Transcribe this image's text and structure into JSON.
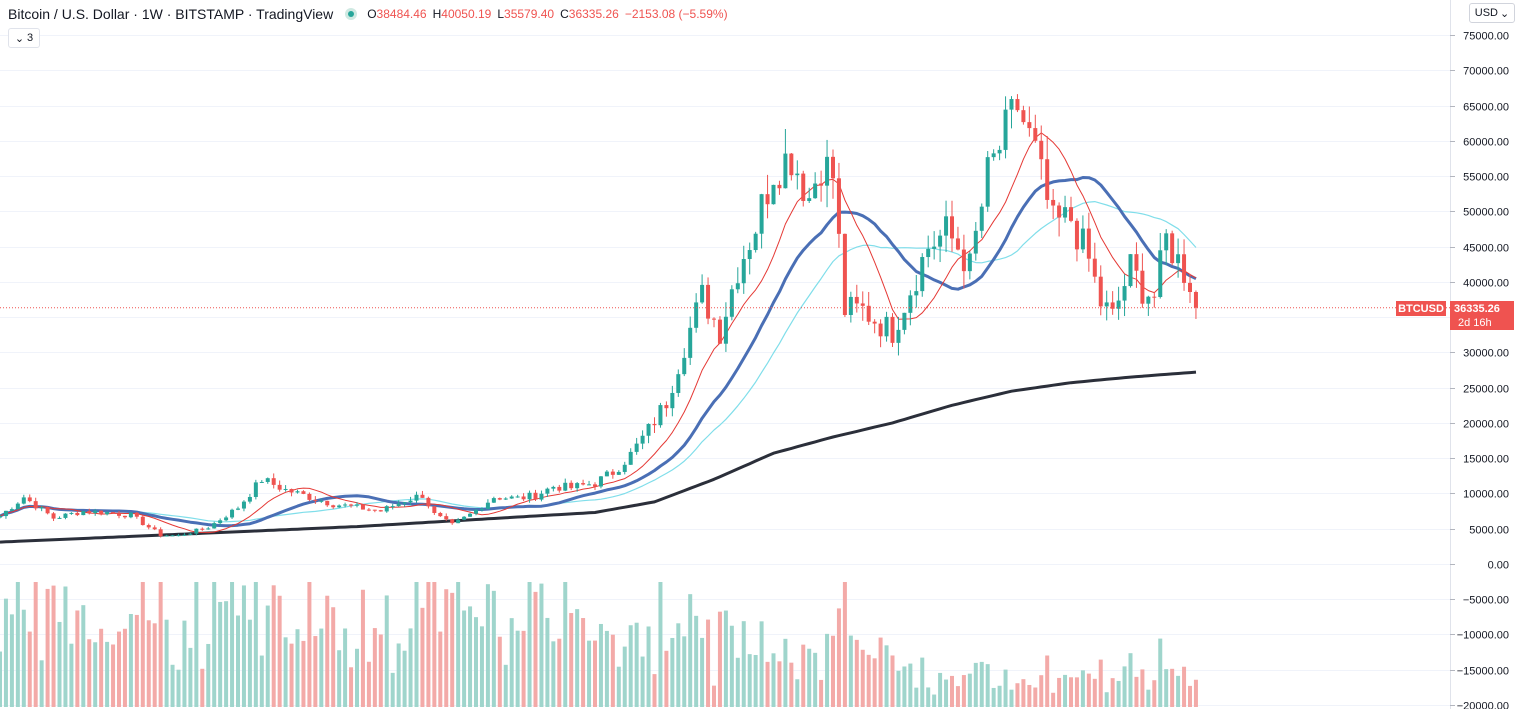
{
  "header": {
    "title": "Bitcoin / U.S. Dollar · 1W · BITSTAMP · TradingView",
    "ohlc": {
      "o_label": "O",
      "o": "38484.46",
      "h_label": "H",
      "h": "40050.19",
      "l_label": "L",
      "l": "35579.40",
      "c_label": "C",
      "c": "36335.26",
      "change": "−2153.08 (−5.59%)"
    },
    "indicator_count": "3"
  },
  "currency": "USD",
  "price_tag": {
    "symbol": "BTCUSD",
    "value": "36335.26",
    "countdown": "2d 16h"
  },
  "colors": {
    "up": "#26a69a",
    "down": "#ef5350",
    "vol_up": "#9fd5cc",
    "vol_down": "#f3aaa8",
    "ma_fast": "#e53935",
    "ma_light": "#80deea",
    "ma_mid": "#4a6fb5",
    "ma_long": "#2b2f3a",
    "grid": "#f0f3fa"
  },
  "chart_data": {
    "type": "candlestick",
    "yaxis_labels": [
      "75000.00",
      "70000.00",
      "65000.00",
      "60000.00",
      "55000.00",
      "50000.00",
      "45000.00",
      "40000.00",
      "35000.00",
      "30000.00",
      "25000.00",
      "20000.00",
      "15000.00",
      "10000.00",
      "5000.00",
      "0.00",
      "−5000.00",
      "−10000.00",
      "−15000.00",
      "−20000.00"
    ],
    "ylim": [
      -20000,
      75000
    ],
    "last_price": 36335.26,
    "close_anchors": [
      [
        0,
        6800
      ],
      [
        4,
        9500
      ],
      [
        9,
        6500
      ],
      [
        14,
        7500
      ],
      [
        18,
        7300
      ],
      [
        22,
        6900
      ],
      [
        27,
        4100
      ],
      [
        30,
        4000
      ],
      [
        35,
        5200
      ],
      [
        40,
        8000
      ],
      [
        44,
        12000
      ],
      [
        48,
        10500
      ],
      [
        52,
        9500
      ],
      [
        56,
        8500
      ],
      [
        60,
        8000
      ],
      [
        64,
        7500
      ],
      [
        68,
        9000
      ],
      [
        71,
        9800
      ],
      [
        73,
        7000
      ],
      [
        76,
        5500
      ],
      [
        79,
        7000
      ],
      [
        83,
        9500
      ],
      [
        87,
        9300
      ],
      [
        90,
        9700
      ],
      [
        93,
        11000
      ],
      [
        96,
        10800
      ],
      [
        100,
        11500
      ],
      [
        103,
        13000
      ],
      [
        106,
        15500
      ],
      [
        109,
        19000
      ],
      [
        112,
        23000
      ],
      [
        115,
        31000
      ],
      [
        118,
        38000
      ],
      [
        121,
        33000
      ],
      [
        124,
        42000
      ],
      [
        127,
        48000
      ],
      [
        130,
        56000
      ],
      [
        133,
        58000
      ],
      [
        136,
        52000
      ],
      [
        138,
        57000
      ],
      [
        140,
        55000
      ],
      [
        142,
        36000
      ],
      [
        145,
        36000
      ],
      [
        148,
        34000
      ],
      [
        150,
        33000
      ],
      [
        152,
        37000
      ],
      [
        156,
        45000
      ],
      [
        159,
        47000
      ],
      [
        161,
        45000
      ],
      [
        163,
        42000
      ],
      [
        166,
        55000
      ],
      [
        169,
        61000
      ],
      [
        171,
        65000
      ],
      [
        174,
        58000
      ],
      [
        177,
        48000
      ],
      [
        180,
        49000
      ],
      [
        183,
        43000
      ],
      [
        185,
        37000
      ],
      [
        187,
        35000
      ],
      [
        190,
        42000
      ],
      [
        192,
        39000
      ],
      [
        194,
        38000
      ],
      [
        196,
        46000
      ],
      [
        198,
        43000
      ],
      [
        200,
        40000
      ],
      [
        201,
        36335.26
      ]
    ],
    "sma_long_anchors": [
      [
        0,
        3100
      ],
      [
        60,
        5300
      ],
      [
        100,
        7300
      ],
      [
        110,
        8800
      ],
      [
        120,
        12000
      ],
      [
        130,
        15700
      ],
      [
        140,
        18000
      ],
      [
        150,
        20000
      ],
      [
        160,
        22500
      ],
      [
        170,
        24500
      ],
      [
        180,
        25700
      ],
      [
        190,
        26500
      ],
      [
        201,
        27200
      ]
    ]
  }
}
